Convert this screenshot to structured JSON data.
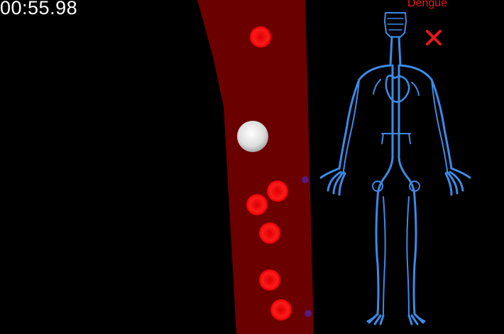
{
  "hud": {
    "timer": "00:55.98",
    "disease_label": "Dengue"
  },
  "icons": {
    "close": "close-x-icon",
    "body_map": "circulatory-system-figure"
  },
  "colors": {
    "background": "#000000",
    "vessel": "#6b0000",
    "red_blood_cell": "#ff1010",
    "white_blood_cell": "#e8e8e8",
    "virus_particle": "#5a1a7a",
    "circulatory_figure": "#3d8ae6",
    "disease_label": "#e51a1a",
    "timer_text": "#ffffff"
  },
  "cells": {
    "red_blood_cell_count": 7,
    "white_blood_cell_count": 1,
    "virus_particle_count": 2
  }
}
